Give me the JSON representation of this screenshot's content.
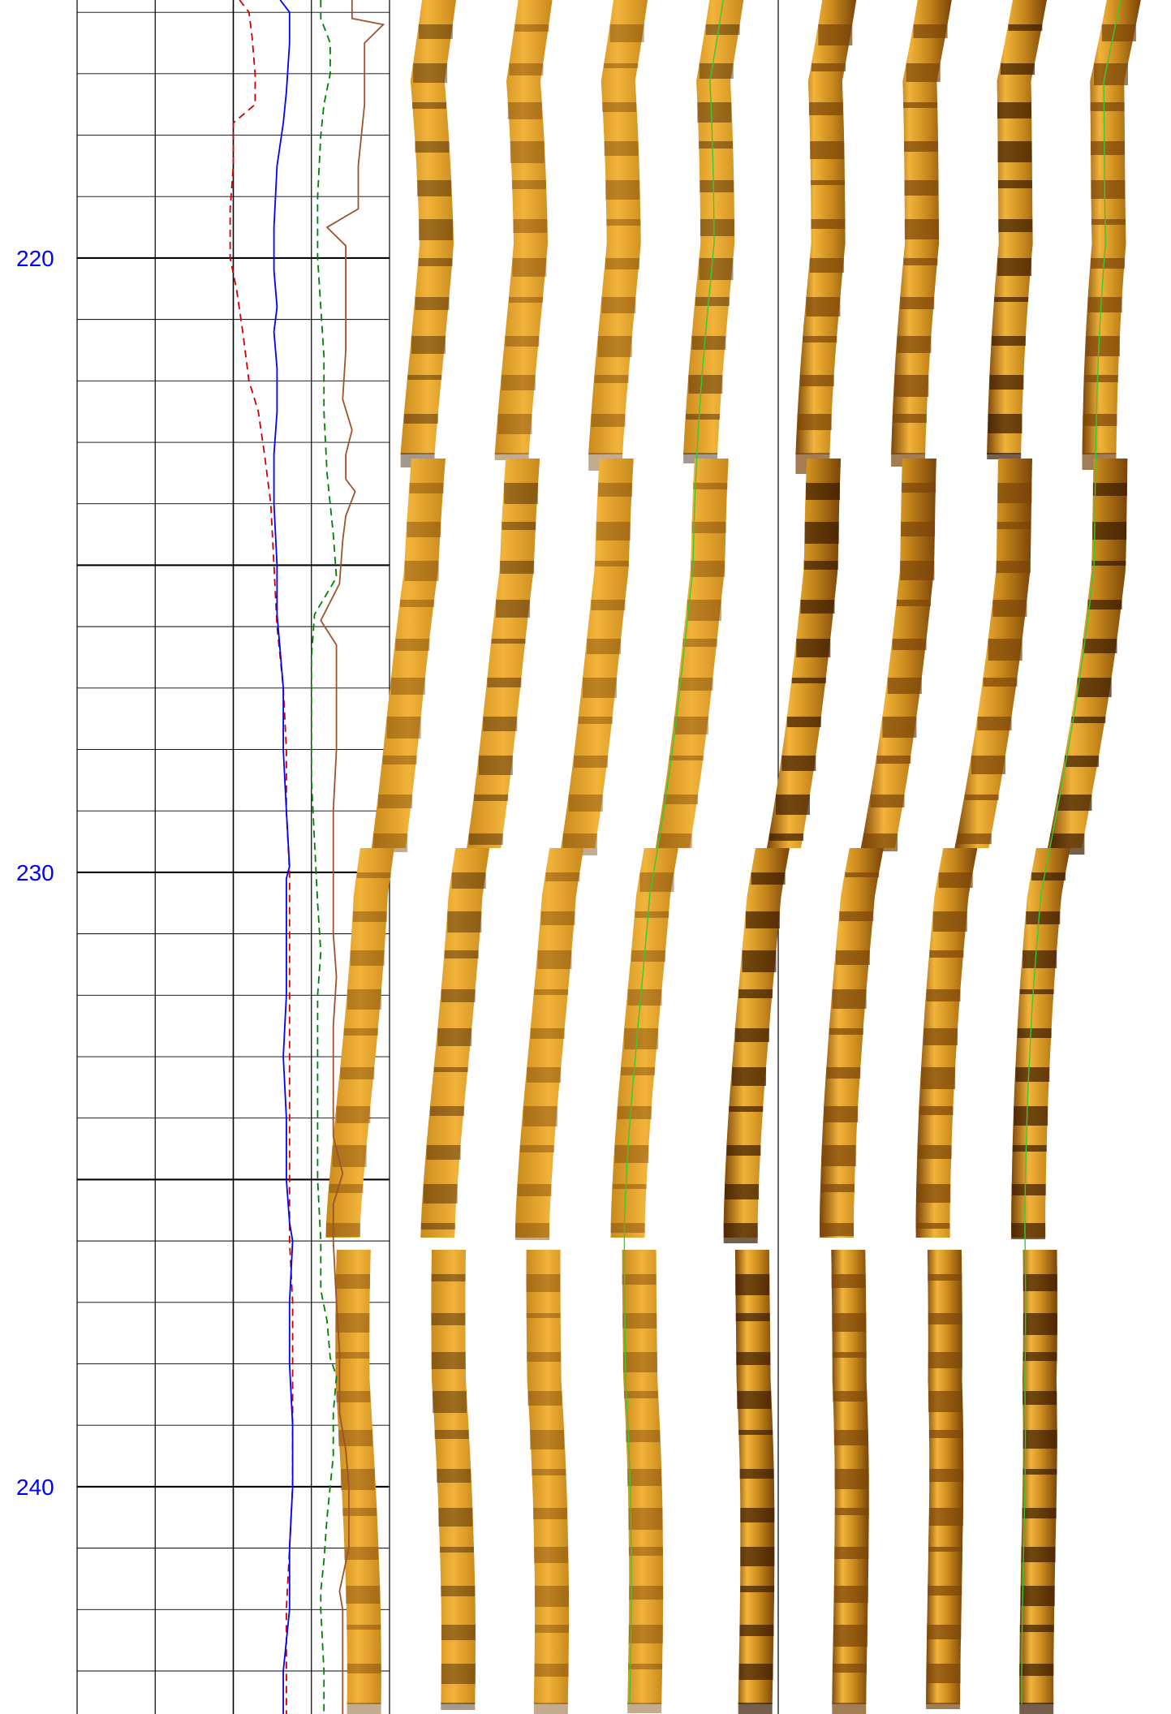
{
  "chart_data": {
    "type": "line",
    "title": "",
    "xlabel": "",
    "ylabel": "",
    "y_axis": {
      "quantity": "depth",
      "range": [
        215.8,
        243.7
      ],
      "major_ticks": [
        220,
        225,
        230,
        235,
        240
      ],
      "labeled_ticks": [
        220,
        230,
        240
      ],
      "label_color": "#0000ff",
      "inverted": true
    },
    "grid": true,
    "legend": "none",
    "tracks": [
      {
        "name": "",
        "kind": "curves",
        "series": [
          {
            "name": "",
            "color": "#cc0000",
            "style": "dashed",
            "points": [
              [
                215.8,
                0.52
              ],
              [
                216.0,
                0.55
              ],
              [
                216.4,
                0.56
              ],
              [
                217.0,
                0.57
              ],
              [
                217.5,
                0.57
              ],
              [
                217.8,
                0.5
              ],
              [
                218.5,
                0.5
              ],
              [
                219.2,
                0.49
              ],
              [
                220.0,
                0.49
              ],
              [
                220.5,
                0.51
              ],
              [
                221.2,
                0.53
              ],
              [
                222.0,
                0.55
              ],
              [
                222.5,
                0.58
              ],
              [
                223.2,
                0.6
              ],
              [
                224.0,
                0.62
              ],
              [
                225.0,
                0.63
              ],
              [
                226.0,
                0.64
              ],
              [
                227.0,
                0.66
              ],
              [
                228.0,
                0.67
              ],
              [
                229.0,
                0.67
              ],
              [
                230.0,
                0.68
              ],
              [
                231.0,
                0.68
              ],
              [
                232.0,
                0.68
              ],
              [
                233.0,
                0.68
              ],
              [
                234.0,
                0.68
              ],
              [
                235.0,
                0.68
              ],
              [
                236.0,
                0.68
              ],
              [
                237.0,
                0.69
              ],
              [
                238.0,
                0.69
              ],
              [
                239.0,
                0.69
              ],
              [
                240.0,
                0.69
              ],
              [
                241.0,
                0.68
              ],
              [
                242.0,
                0.67
              ],
              [
                243.0,
                0.67
              ],
              [
                243.7,
                0.67
              ]
            ]
          },
          {
            "name": "",
            "color": "#0000ff",
            "style": "solid",
            "points": [
              [
                215.8,
                0.65
              ],
              [
                216.0,
                0.68
              ],
              [
                216.5,
                0.68
              ],
              [
                217.3,
                0.67
              ],
              [
                217.8,
                0.66
              ],
              [
                218.5,
                0.64
              ],
              [
                219.5,
                0.63
              ],
              [
                220.2,
                0.63
              ],
              [
                220.8,
                0.64
              ],
              [
                221.2,
                0.63
              ],
              [
                221.8,
                0.64
              ],
              [
                222.5,
                0.64
              ],
              [
                223.2,
                0.63
              ],
              [
                224.0,
                0.63
              ],
              [
                225.0,
                0.64
              ],
              [
                225.8,
                0.64
              ],
              [
                226.4,
                0.65
              ],
              [
                227.0,
                0.66
              ],
              [
                228.0,
                0.66
              ],
              [
                229.0,
                0.67
              ],
              [
                229.9,
                0.68
              ],
              [
                230.1,
                0.67
              ],
              [
                231.0,
                0.67
              ],
              [
                232.0,
                0.67
              ],
              [
                233.0,
                0.66
              ],
              [
                234.0,
                0.67
              ],
              [
                235.0,
                0.67
              ],
              [
                235.7,
                0.68
              ],
              [
                236.0,
                0.69
              ],
              [
                237.0,
                0.68
              ],
              [
                238.0,
                0.68
              ],
              [
                239.0,
                0.69
              ],
              [
                240.0,
                0.69
              ],
              [
                241.0,
                0.68
              ],
              [
                242.0,
                0.68
              ],
              [
                243.0,
                0.66
              ],
              [
                243.7,
                0.66
              ]
            ]
          },
          {
            "name": "",
            "color": "#008000",
            "style": "dashed",
            "points": [
              [
                215.8,
                0.78
              ],
              [
                216.1,
                0.78
              ],
              [
                216.5,
                0.81
              ],
              [
                217.0,
                0.81
              ],
              [
                217.5,
                0.79
              ],
              [
                218.0,
                0.78
              ],
              [
                219.0,
                0.77
              ],
              [
                220.0,
                0.77
              ],
              [
                220.8,
                0.78
              ],
              [
                221.6,
                0.79
              ],
              [
                222.5,
                0.79
              ],
              [
                223.5,
                0.8
              ],
              [
                224.5,
                0.82
              ],
              [
                225.2,
                0.83
              ],
              [
                225.8,
                0.76
              ],
              [
                226.5,
                0.75
              ],
              [
                227.5,
                0.75
              ],
              [
                228.5,
                0.75
              ],
              [
                229.5,
                0.76
              ],
              [
                230.5,
                0.77
              ],
              [
                231.3,
                0.78
              ],
              [
                232.0,
                0.77
              ],
              [
                233.0,
                0.77
              ],
              [
                234.0,
                0.77
              ],
              [
                235.0,
                0.77
              ],
              [
                236.0,
                0.78
              ],
              [
                236.8,
                0.78
              ],
              [
                237.3,
                0.8
              ],
              [
                237.9,
                0.81
              ],
              [
                238.2,
                0.83
              ],
              [
                238.8,
                0.82
              ],
              [
                239.5,
                0.82
              ],
              [
                240.0,
                0.81
              ],
              [
                240.5,
                0.8
              ],
              [
                241.2,
                0.79
              ],
              [
                241.7,
                0.78
              ],
              [
                242.0,
                0.78
              ],
              [
                243.0,
                0.79
              ],
              [
                243.7,
                0.79
              ]
            ]
          },
          {
            "name": "",
            "color": "#a0522d",
            "style": "solid",
            "points": [
              [
                215.8,
                0.88
              ],
              [
                216.1,
                0.88
              ],
              [
                216.2,
                0.98
              ],
              [
                216.5,
                0.92
              ],
              [
                217.5,
                0.92
              ],
              [
                218.5,
                0.9
              ],
              [
                219.2,
                0.9
              ],
              [
                219.5,
                0.8
              ],
              [
                219.8,
                0.86
              ],
              [
                220.3,
                0.86
              ],
              [
                221.5,
                0.86
              ],
              [
                222.3,
                0.85
              ],
              [
                222.8,
                0.88
              ],
              [
                223.2,
                0.86
              ],
              [
                223.6,
                0.86
              ],
              [
                223.8,
                0.89
              ],
              [
                224.2,
                0.86
              ],
              [
                224.6,
                0.85
              ],
              [
                225.3,
                0.84
              ],
              [
                225.9,
                0.78
              ],
              [
                226.3,
                0.83
              ],
              [
                227.0,
                0.83
              ],
              [
                228.0,
                0.83
              ],
              [
                229.0,
                0.82
              ],
              [
                230.0,
                0.82
              ],
              [
                231.0,
                0.82
              ],
              [
                231.7,
                0.83
              ],
              [
                232.5,
                0.82
              ],
              [
                233.5,
                0.82
              ],
              [
                234.3,
                0.82
              ],
              [
                234.9,
                0.85
              ],
              [
                235.4,
                0.82
              ],
              [
                236.0,
                0.82
              ],
              [
                237.0,
                0.83
              ],
              [
                237.8,
                0.84
              ],
              [
                238.8,
                0.84
              ],
              [
                239.4,
                0.86
              ],
              [
                240.0,
                0.87
              ],
              [
                241.0,
                0.87
              ],
              [
                241.7,
                0.84
              ],
              [
                242.0,
                0.85
              ],
              [
                243.0,
                0.85
              ],
              [
                243.7,
                0.85
              ]
            ]
          }
        ]
      },
      {
        "name": "",
        "kind": "image",
        "count": 8,
        "colors": [
          "#f2b33a",
          "#c98a1c",
          "#7a4508",
          "#3a1a00"
        ]
      }
    ]
  }
}
